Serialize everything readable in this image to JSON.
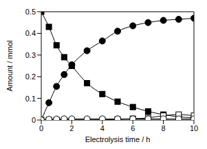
{
  "chart_data": {
    "type": "line",
    "x_label": "Electrolysis time / h",
    "y_label": "Amount / mmol",
    "x": [
      0,
      0.5,
      1,
      1.5,
      2,
      3,
      4,
      5,
      6,
      7,
      8,
      9,
      10
    ],
    "xlim": [
      0,
      10
    ],
    "xticks": [
      0,
      2,
      4,
      6,
      8,
      10
    ],
    "ylim": [
      0,
      0.5
    ],
    "yticks": [
      0,
      0.1,
      0.2,
      0.3,
      0.4,
      0.5
    ],
    "grid": false,
    "series": [
      {
        "color": "#000000",
        "marker": "square",
        "values": [
          0.5,
          0.43,
          0.345,
          0.29,
          0.25,
          0.17,
          0.12,
          0.085,
          0.06,
          0.04,
          0.025,
          0.015,
          0.01
        ]
      },
      {
        "color": "#000000",
        "marker": "circle",
        "values": [
          0,
          0.08,
          0.155,
          0.21,
          0.255,
          0.32,
          0.365,
          0.41,
          0.435,
          0.45,
          0.46,
          0.465,
          0.47
        ]
      },
      {
        "color": "#000000",
        "marker": "square-open",
        "values": [
          0,
          0,
          0,
          0,
          0,
          0,
          0,
          0.003,
          0.006,
          0.01,
          0.02,
          0.025,
          0.02
        ]
      },
      {
        "color": "#000000",
        "marker": "circle-open",
        "values": [
          0,
          0.003,
          0.004,
          0.005,
          0.005,
          0.005,
          0.005,
          0.005,
          0.005,
          0.005,
          0.005,
          0.005,
          0.005
        ]
      }
    ]
  }
}
